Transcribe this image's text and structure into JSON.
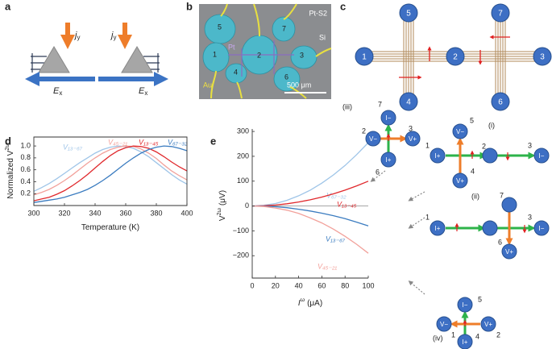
{
  "panel_labels": [
    "a",
    "b",
    "c",
    "d",
    "e"
  ],
  "a": {
    "current": "j",
    "current_sub": "y",
    "field": "E",
    "field_sub": "x"
  },
  "b": {
    "sample": "Pt-S2",
    "substrate": "Si",
    "film": "Pt",
    "contact": "Au",
    "scale_bar": "500 μm",
    "pads": [
      "1",
      "2",
      "3",
      "4",
      "5",
      "6",
      "7"
    ]
  },
  "c": {
    "nodes": [
      "1",
      "2",
      "3",
      "4",
      "5",
      "6",
      "7"
    ]
  },
  "chart_data": [
    {
      "type": "line",
      "xlabel": "Temperature (K)",
      "ylabel": "Normalized V",
      "ylabel_sup": "2ω",
      "box": true,
      "zero_line": false,
      "x": [
        300,
        305,
        310,
        315,
        320,
        325,
        330,
        335,
        340,
        345,
        350,
        355,
        360,
        365,
        370,
        375,
        380,
        385,
        390,
        395,
        400
      ],
      "xlim": [
        300,
        400
      ],
      "xticks": [
        300,
        320,
        340,
        360,
        380,
        400
      ],
      "ylim": [
        0,
        1.15
      ],
      "yticks": [
        0.2,
        0.4,
        0.6,
        0.8,
        {
          "value": 1,
          "label": "1.0"
        }
      ],
      "series": [
        {
          "name": "V₁₃₋₆₇",
          "color": "#9fc5e8",
          "values": [
            0.24,
            0.3,
            0.37,
            0.45,
            0.54,
            0.63,
            0.72,
            0.8,
            0.88,
            0.94,
            0.98,
            1.0,
            0.99,
            0.96,
            0.9,
            0.82,
            0.72,
            0.62,
            0.52,
            0.43,
            0.36
          ]
        },
        {
          "name": "V₄₅₋₂₁",
          "color": "#f2a19b",
          "values": [
            0.18,
            0.22,
            0.27,
            0.34,
            0.42,
            0.51,
            0.61,
            0.71,
            0.8,
            0.88,
            0.94,
            0.98,
            1.0,
            0.99,
            0.95,
            0.88,
            0.79,
            0.68,
            0.58,
            0.5,
            0.43
          ]
        },
        {
          "name": "V₁₃₋₄₅",
          "color": "#e0282c",
          "values": [
            0.08,
            0.11,
            0.14,
            0.19,
            0.25,
            0.33,
            0.42,
            0.52,
            0.63,
            0.74,
            0.84,
            0.92,
            0.97,
            1.0,
            0.99,
            0.96,
            0.9,
            0.82,
            0.73,
            0.65,
            0.58
          ]
        },
        {
          "name": "V₆₇₋₃₂",
          "color": "#3b7cc0",
          "values": [
            0.05,
            0.07,
            0.09,
            0.11,
            0.14,
            0.18,
            0.22,
            0.27,
            0.34,
            0.42,
            0.51,
            0.61,
            0.71,
            0.8,
            0.88,
            0.94,
            0.98,
            1.0,
            0.99,
            0.96,
            0.92
          ]
        }
      ]
    },
    {
      "type": "line",
      "xlabel": "I",
      "xlabel_sup": "ω",
      "xlabel_unit": "(μA)",
      "ylabel": "V",
      "ylabel_sup": "2ω",
      "ylabel_unit": "(μV)",
      "box": false,
      "zero_line": true,
      "x": [
        0,
        10,
        20,
        30,
        40,
        50,
        60,
        70,
        80,
        90,
        100
      ],
      "xlim": [
        0,
        100
      ],
      "xticks": [
        0,
        20,
        40,
        60,
        80,
        100
      ],
      "ylim": [
        -290,
        310
      ],
      "yticks": [
        300,
        200,
        100,
        0,
        {
          "value": -100,
          "label": "−100"
        },
        {
          "value": -200,
          "label": "−200"
        }
      ],
      "series": [
        {
          "name": "V₆₇₋₃₂",
          "color": "#9fc5e8",
          "values": [
            0,
            3,
            10,
            23,
            41,
            64,
            92,
            125,
            163,
            207,
            255
          ]
        },
        {
          "name": "V₁₃₋₄₅",
          "color": "#e0282c",
          "values": [
            0,
            1,
            4,
            9,
            16,
            25,
            36,
            49,
            64,
            81,
            100
          ]
        },
        {
          "name": "V₁₃₋₆₇",
          "color": "#3b7cc0",
          "values": [
            0,
            -1,
            -3,
            -7,
            -13,
            -20,
            -29,
            -39,
            -51,
            -65,
            -80
          ]
        },
        {
          "name": "V₄₅₋₂₁",
          "color": "#f2a19b",
          "values": [
            0,
            -2,
            -8,
            -17,
            -30,
            -48,
            -68,
            -93,
            -122,
            -154,
            -190
          ]
        }
      ]
    }
  ],
  "e_diagrams": [
    {
      "label": "(iii)",
      "nodes": [
        {
          "label": "I−",
          "number": "7"
        },
        {
          "label": "V−",
          "number": "2"
        },
        {
          "label": "V+",
          "number": "3"
        },
        {
          "label": "I+",
          "number": "6"
        }
      ]
    },
    {
      "label": "(i)",
      "nodes": [
        {
          "label": "I+",
          "number": "1"
        },
        {
          "number": "2"
        },
        {
          "label": "I−",
          "number": "3"
        },
        {
          "label": "V−",
          "number": "5"
        },
        {
          "label": "V+",
          "number": "4"
        }
      ]
    },
    {
      "label": "(ii)",
      "nodes": [
        {
          "label": "I+",
          "number": "1"
        },
        {
          "label": "I−",
          "number": "3"
        },
        {
          "number": "7"
        },
        {
          "label": "V+",
          "number": "6"
        }
      ]
    },
    {
      "label": "(iv)",
      "nodes": [
        {
          "label": "I−",
          "number": "5"
        },
        {
          "label": "V−",
          "number": "1"
        },
        {
          "label": "V+",
          "number": "2"
        },
        {
          "label": "I+",
          "number": "4"
        }
      ]
    }
  ]
}
